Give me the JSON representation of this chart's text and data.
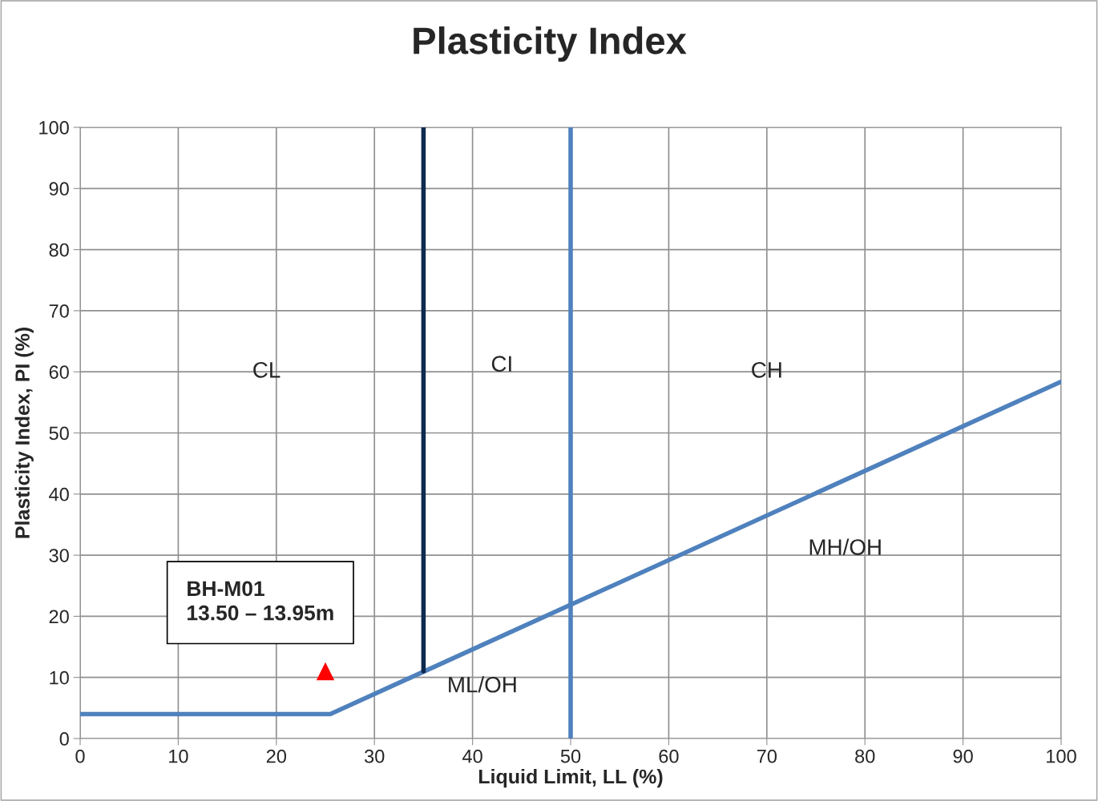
{
  "chart_data": {
    "type": "line",
    "title": "Plasticity Index",
    "xlabel": "Liquid Limit, LL (%)",
    "ylabel": "Plasticity Index, PI (%)",
    "xlim": [
      0,
      100
    ],
    "xticks": [
      0,
      10,
      20,
      30,
      40,
      50,
      60,
      70,
      80,
      90,
      100
    ],
    "ylim": [
      0,
      100
    ],
    "yticks": [
      0,
      10,
      20,
      30,
      40,
      50,
      60,
      70,
      80,
      90,
      100
    ],
    "grid": true,
    "legend": false,
    "series": [
      {
        "color": "#4f81bd",
        "x": [
          0,
          25.5,
          100
        ],
        "values": [
          4,
          4,
          58.4
        ]
      },
      {
        "color": "#0f2a4f",
        "x": [
          35,
          35
        ],
        "values": [
          11,
          100
        ]
      },
      {
        "color": "#4f81bd",
        "x": [
          50,
          50
        ],
        "values": [
          0,
          100
        ]
      },
      {
        "type": "scatter",
        "color": "#ff0000",
        "marker": "triangle",
        "x": [
          25
        ],
        "values": [
          11
        ]
      }
    ],
    "annotations": [
      "CL",
      "CI",
      "CH",
      "MH/OH",
      "ML/OH",
      {
        "text": "BH-M01\n13.50 – 13.95m",
        "x": 25,
        "y": 11
      }
    ]
  }
}
